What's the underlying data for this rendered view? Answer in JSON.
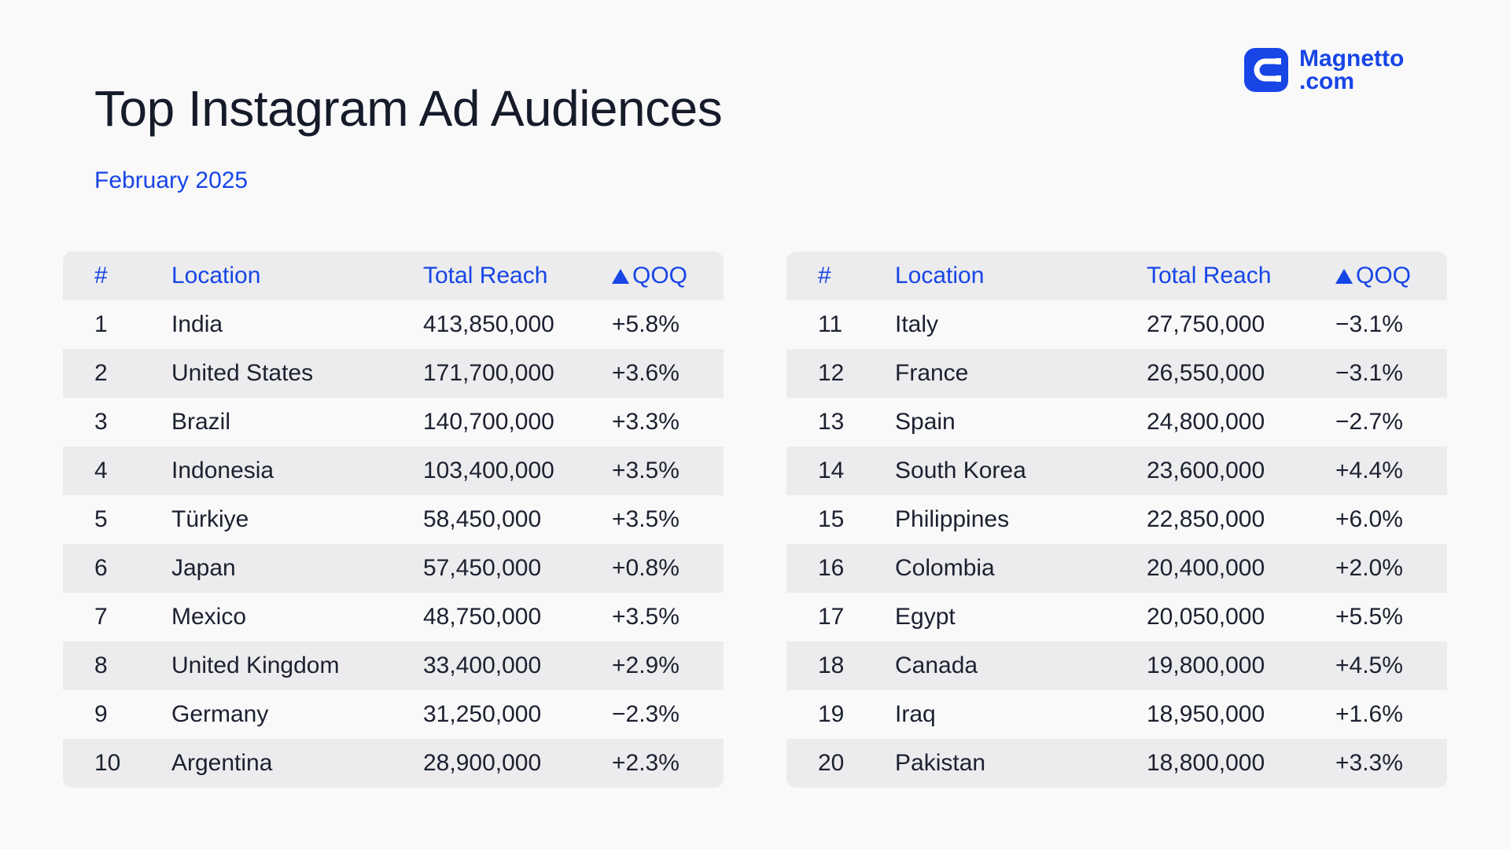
{
  "title": "Top Instagram Ad Audiences",
  "subtitle": "February 2025",
  "brand": {
    "line1": "Magnetto",
    "line2": ".com",
    "color": "#1745e6",
    "icon": "magnet-logo-icon"
  },
  "headers": {
    "rank": "#",
    "location": "Location",
    "reach": "Total Reach",
    "qoq": "QOQ",
    "qoq_icon": "delta-triangle-icon"
  },
  "tables": [
    {
      "rows": [
        {
          "rank": "1",
          "location": "India",
          "reach": "413,850,000",
          "qoq": "+5.8%"
        },
        {
          "rank": "2",
          "location": "United States",
          "reach": "171,700,000",
          "qoq": "+3.6%"
        },
        {
          "rank": "3",
          "location": "Brazil",
          "reach": "140,700,000",
          "qoq": "+3.3%"
        },
        {
          "rank": "4",
          "location": "Indonesia",
          "reach": "103,400,000",
          "qoq": "+3.5%"
        },
        {
          "rank": "5",
          "location": "Türkiye",
          "reach": "58,450,000",
          "qoq": "+3.5%"
        },
        {
          "rank": "6",
          "location": "Japan",
          "reach": "57,450,000",
          "qoq": "+0.8%"
        },
        {
          "rank": "7",
          "location": "Mexico",
          "reach": "48,750,000",
          "qoq": "+3.5%"
        },
        {
          "rank": "8",
          "location": "United Kingdom",
          "reach": "33,400,000",
          "qoq": "+2.9%"
        },
        {
          "rank": "9",
          "location": "Germany",
          "reach": "31,250,000",
          "qoq": "−2.3%"
        },
        {
          "rank": "10",
          "location": "Argentina",
          "reach": "28,900,000",
          "qoq": "+2.3%"
        }
      ]
    },
    {
      "rows": [
        {
          "rank": "11",
          "location": "Italy",
          "reach": "27,750,000",
          "qoq": "−3.1%"
        },
        {
          "rank": "12",
          "location": "France",
          "reach": "26,550,000",
          "qoq": "−3.1%"
        },
        {
          "rank": "13",
          "location": "Spain",
          "reach": "24,800,000",
          "qoq": "−2.7%"
        },
        {
          "rank": "14",
          "location": "South Korea",
          "reach": "23,600,000",
          "qoq": "+4.4%"
        },
        {
          "rank": "15",
          "location": "Philippines",
          "reach": "22,850,000",
          "qoq": "+6.0%"
        },
        {
          "rank": "16",
          "location": "Colombia",
          "reach": "20,400,000",
          "qoq": "+2.0%"
        },
        {
          "rank": "17",
          "location": "Egypt",
          "reach": "20,050,000",
          "qoq": "+5.5%"
        },
        {
          "rank": "18",
          "location": "Canada",
          "reach": "19,800,000",
          "qoq": "+4.5%"
        },
        {
          "rank": "19",
          "location": "Iraq",
          "reach": "18,950,000",
          "qoq": "+1.6%"
        },
        {
          "rank": "20",
          "location": "Pakistan",
          "reach": "18,800,000",
          "qoq": "+3.3%"
        }
      ]
    }
  ]
}
